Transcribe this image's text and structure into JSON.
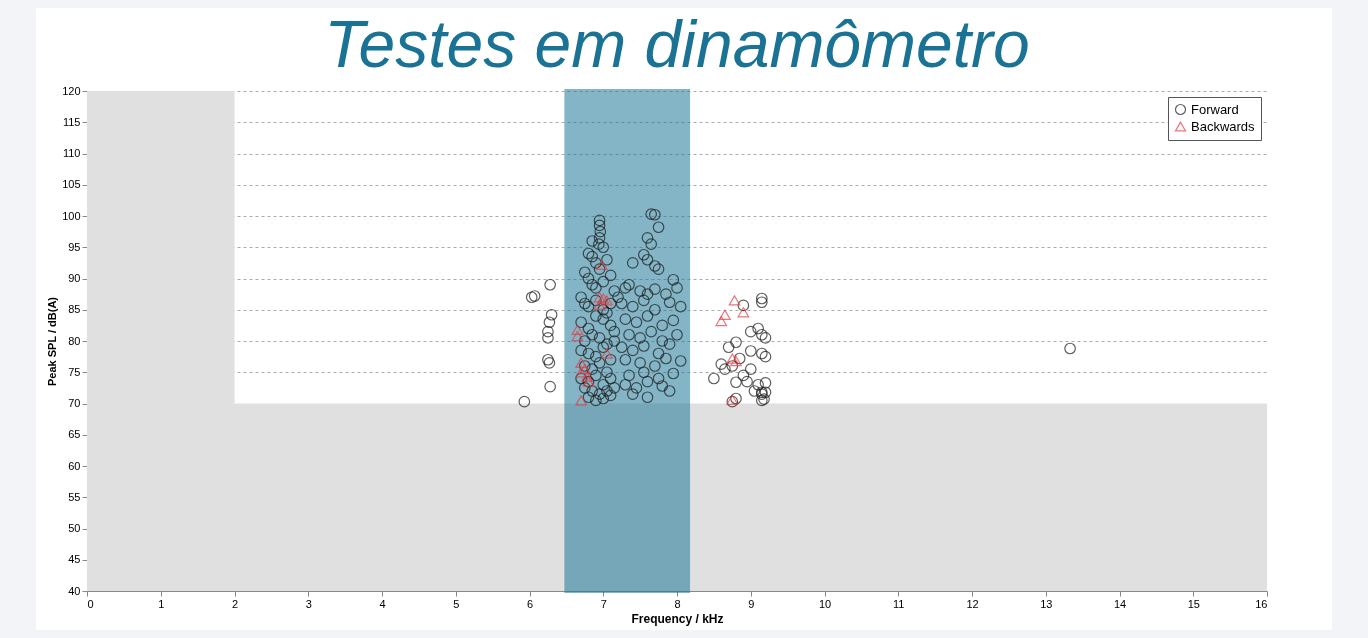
{
  "chart_data": {
    "type": "scatter",
    "title": "Testes em dinamômetro",
    "xlabel": "Frequency / kHz",
    "ylabel": "Peak SPL / dB(A)",
    "xlim": [
      0,
      16
    ],
    "xticks": [
      0,
      1,
      2,
      3,
      4,
      5,
      6,
      7,
      8,
      9,
      10,
      11,
      12,
      13,
      14,
      15,
      16
    ],
    "ylim": [
      40,
      120
    ],
    "yticks": [
      40,
      45,
      50,
      55,
      60,
      65,
      70,
      75,
      80,
      85,
      90,
      95,
      100,
      105,
      110,
      115,
      120
    ],
    "grid": "y",
    "legend": "top right",
    "bands": [
      {
        "axis": "y",
        "from": 40,
        "to": 70,
        "color": "#e0e0e0"
      },
      {
        "axis": "x",
        "from": 0,
        "to": 2,
        "color": "#e0e0e0"
      },
      {
        "axis": "x",
        "from": 6.5,
        "to": 8.15,
        "color": "#1f7a99"
      }
    ],
    "series": [
      {
        "name": "Forward",
        "color": "#1a1a1a",
        "marker": "circle",
        "x": [
          5.93,
          6.03,
          6.07,
          6.28,
          6.3,
          6.25,
          6.25,
          6.27,
          6.25,
          6.27,
          6.28,
          6.95,
          6.95,
          6.96,
          6.95,
          6.94,
          6.85,
          6.8,
          7.0,
          7.05,
          6.9,
          6.75,
          6.8,
          6.85,
          6.9,
          7.0,
          7.1,
          7.15,
          6.7,
          6.75,
          6.8,
          6.9,
          7.0,
          7.05,
          7.1,
          7.2,
          6.7,
          6.8,
          6.9,
          7.0,
          7.1,
          7.15,
          6.75,
          6.85,
          6.95,
          7.05,
          7.15,
          6.7,
          6.8,
          6.9,
          7.0,
          7.1,
          6.75,
          6.85,
          6.95,
          7.05,
          6.7,
          6.8,
          6.9,
          7.0,
          7.1,
          6.75,
          6.85,
          6.95,
          7.05,
          7.15,
          6.8,
          6.9,
          7.0,
          7.1,
          6.85,
          6.95,
          7.65,
          7.7,
          7.75,
          7.6,
          7.65,
          7.55,
          7.6,
          7.7,
          7.75,
          7.4,
          7.95,
          7.3,
          7.35,
          7.5,
          7.6,
          7.7,
          7.85,
          8.0,
          7.25,
          7.4,
          7.55,
          7.7,
          7.9,
          8.05,
          7.3,
          7.45,
          7.6,
          7.8,
          7.95,
          7.35,
          7.5,
          7.65,
          7.8,
          8.0,
          7.25,
          7.4,
          7.55,
          7.75,
          7.9,
          7.3,
          7.5,
          7.7,
          7.85,
          8.05,
          7.35,
          7.55,
          7.75,
          7.95,
          7.3,
          7.45,
          7.6,
          7.8,
          7.4,
          7.6,
          7.9,
          9.15,
          9.15,
          9.15,
          8.9,
          9.0,
          9.1,
          9.15,
          9.2,
          8.8,
          8.7,
          9.0,
          9.15,
          9.2,
          8.6,
          8.75,
          8.65,
          8.9,
          8.5,
          8.8,
          9.1,
          9.2,
          8.95,
          9.05,
          9.15,
          9.2,
          9.15,
          9.18,
          8.75,
          8.8,
          9.0,
          8.85,
          13.33
        ],
        "values": [
          70.3,
          87,
          87.2,
          89,
          84.2,
          81.5,
          80.5,
          83,
          77,
          76.5,
          72.7,
          99.3,
          98.5,
          97.5,
          96.5,
          95.5,
          96,
          94,
          95,
          93,
          92.5,
          91,
          90,
          89,
          88.5,
          89.5,
          90.5,
          88,
          87,
          86,
          85.5,
          86.5,
          85,
          84.5,
          86,
          87,
          83,
          82,
          84,
          83.5,
          82.5,
          81.5,
          80,
          81,
          80.5,
          79.5,
          80,
          78.5,
          78,
          77.5,
          79,
          77,
          76,
          75.5,
          76.5,
          75,
          74,
          73.5,
          74.5,
          73,
          74,
          72.5,
          72,
          71.5,
          72,
          72.5,
          71,
          70.5,
          70.8,
          71.3,
          93.5,
          91.5,
          100.3,
          100.2,
          98.2,
          96.5,
          95.5,
          93.8,
          93,
          92,
          91.5,
          92.5,
          89.8,
          88.5,
          89,
          88,
          87.5,
          88.3,
          87.5,
          88.5,
          86,
          85.5,
          86.5,
          85,
          86.2,
          85.5,
          83.5,
          83,
          84,
          82.5,
          83.3,
          81,
          80.5,
          81.5,
          80,
          81,
          79,
          78.5,
          79.2,
          78,
          79.5,
          77,
          76.5,
          76,
          77.2,
          76.8,
          74.5,
          75,
          74,
          74.8,
          73,
          72.5,
          73.5,
          72.8,
          71.5,
          71,
          72,
          70.5,
          86.8,
          86.2,
          85.7,
          81.5,
          82,
          81,
          80.5,
          79.8,
          79,
          78.4,
          78,
          77.5,
          76.3,
          76,
          75.5,
          74.5,
          74,
          73.4,
          73,
          73.3,
          73.5,
          72,
          71.8,
          71.8,
          71.5,
          70.7,
          70.3,
          70.8,
          75.5,
          77.2,
          78.8
        ]
      },
      {
        "name": "Backwards",
        "color": "#e8383d",
        "marker": "triangle",
        "x": [
          6.98,
          6.95,
          7.0,
          6.95,
          7.05,
          7.05,
          6.65,
          6.65,
          6.7,
          6.7,
          6.75,
          6.78,
          6.8,
          6.7,
          8.78,
          8.65,
          8.6,
          8.9,
          8.75,
          8.8,
          8.75
        ],
        "values": [
          92.2,
          87,
          86.8,
          85.8,
          86.5,
          78,
          81.8,
          80.8,
          76.5,
          75,
          75.5,
          74.3,
          73.5,
          70.5,
          86.5,
          84.2,
          83.2,
          84.6,
          77.2,
          76.8,
          70.6
        ]
      }
    ]
  }
}
